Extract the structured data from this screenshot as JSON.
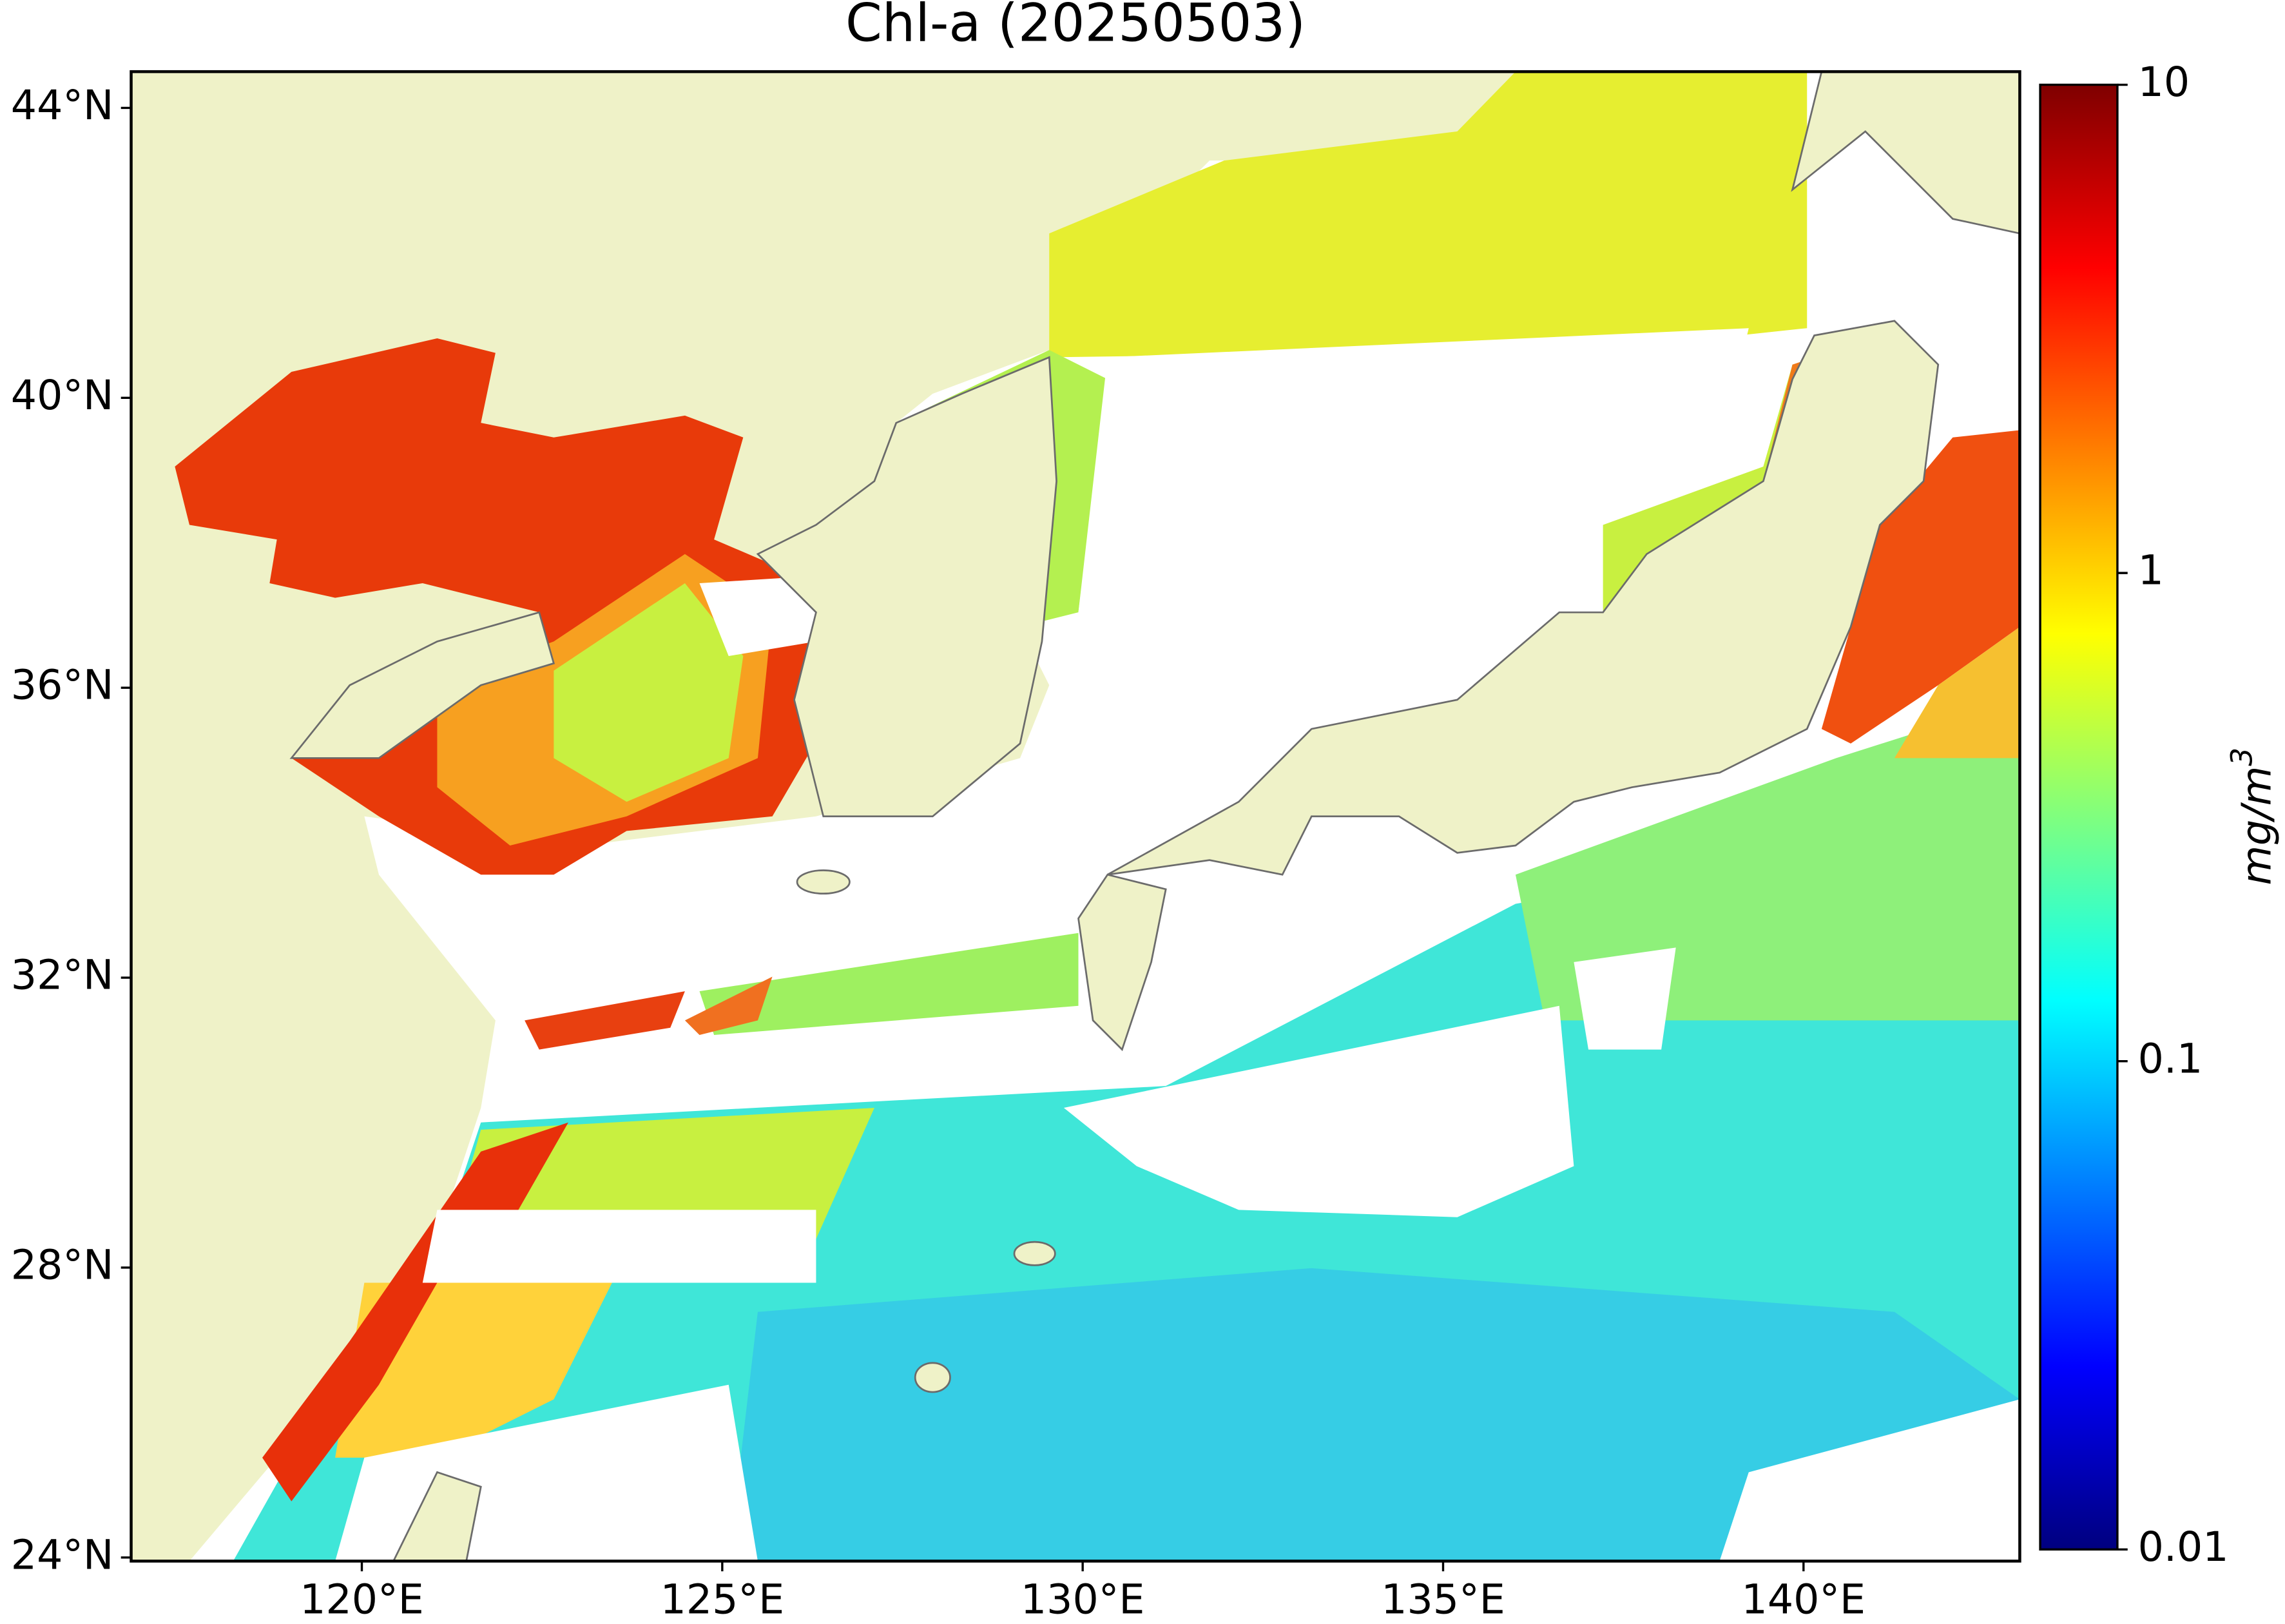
{
  "map": {
    "title": "Chl-a (20250503)",
    "xlim": [
      116.8,
      143.0
    ],
    "ylim": [
      23.95,
      44.5
    ],
    "xticks": [
      {
        "value": 120,
        "label": "120°E"
      },
      {
        "value": 125,
        "label": "125°E"
      },
      {
        "value": 130,
        "label": "130°E"
      },
      {
        "value": 135,
        "label": "135°E"
      },
      {
        "value": 140,
        "label": "140°E"
      }
    ],
    "yticks": [
      {
        "value": 24,
        "label": "24°N"
      },
      {
        "value": 28,
        "label": "28°N"
      },
      {
        "value": 32,
        "label": "32°N"
      },
      {
        "value": 36,
        "label": "36°N"
      },
      {
        "value": 40,
        "label": "40°N"
      },
      {
        "value": 44,
        "label": "44°N"
      }
    ]
  },
  "colorbar": {
    "label": "mg/m",
    "label_superscript": "3",
    "scale": "log",
    "lim": [
      0.01,
      10
    ],
    "ticks": [
      0.01,
      0.1,
      1,
      10
    ],
    "colormap": [
      "#00007f",
      "#0000ff",
      "#007fff",
      "#00ffff",
      "#7fff7f",
      "#ffff00",
      "#ff7f00",
      "#ff0000",
      "#7f0000"
    ]
  }
}
